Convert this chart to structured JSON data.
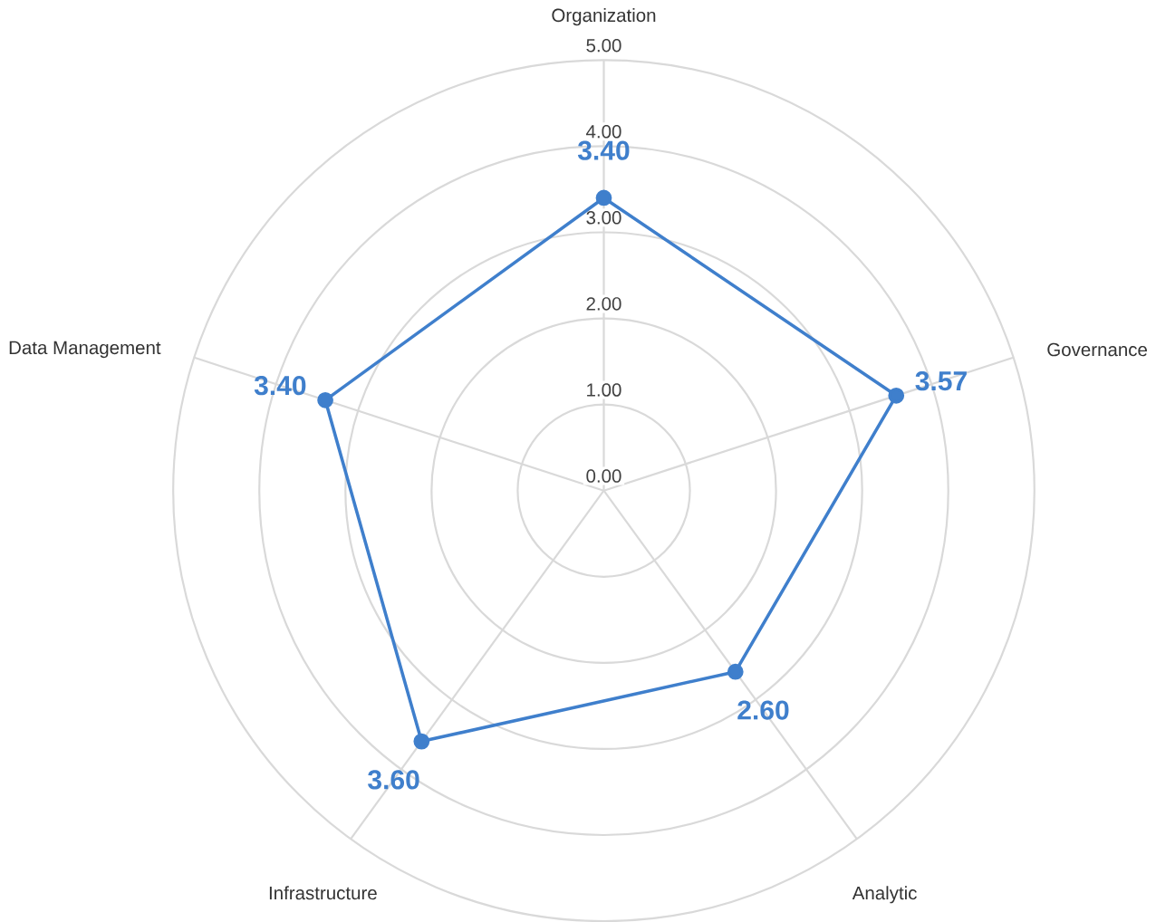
{
  "chart_data": {
    "type": "radar",
    "categories": [
      "Organization",
      "Governance",
      "Analytic",
      "Infrastructure",
      "Data Management"
    ],
    "series": [
      {
        "color": "#3f7fcc",
        "values": [
          3.4,
          3.57,
          2.6,
          3.6,
          3.4
        ],
        "value_labels": [
          "3.40",
          "3.57",
          "2.60",
          "3.60",
          "3.40"
        ]
      }
    ],
    "ylim": [
      0,
      5
    ],
    "yticks": [
      {
        "value": 0,
        "label": "0.00"
      },
      {
        "value": 1,
        "label": "1.00"
      },
      {
        "value": 2,
        "label": "2.00"
      },
      {
        "value": 3,
        "label": "3.00"
      },
      {
        "value": 4,
        "label": "4.00"
      },
      {
        "value": 5,
        "label": "5.00"
      }
    ],
    "grid": true,
    "marker": "circle"
  }
}
